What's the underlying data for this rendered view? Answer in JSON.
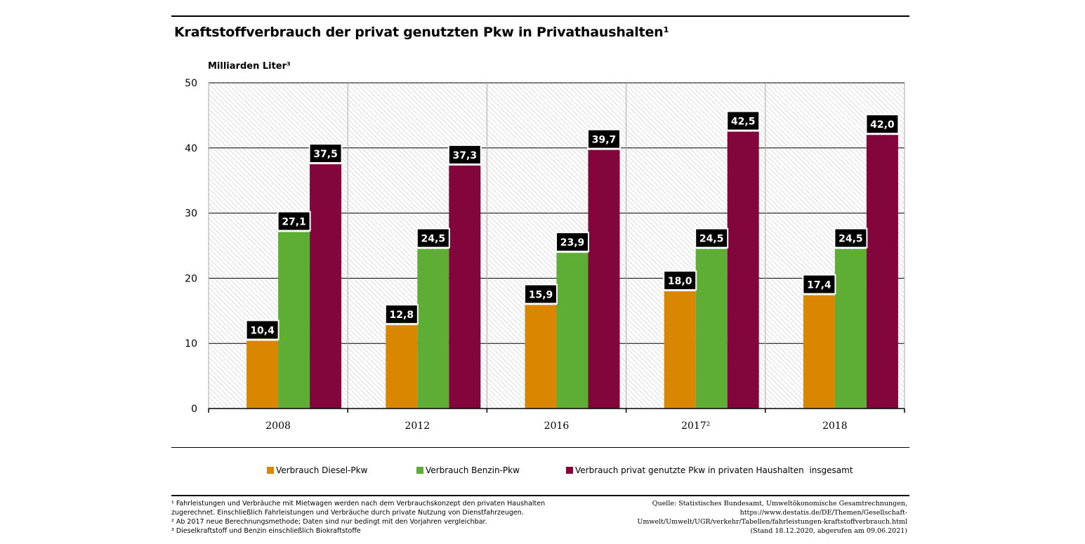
{
  "chart_data": {
    "type": "bar",
    "title": "Kraftstoffverbrauch der privat genutzten Pkw in Privathaushalten¹",
    "ylabel": "Milliarden Liter³",
    "xlabel": "",
    "ylim": [
      0,
      50
    ],
    "yticks": [
      "0",
      "10",
      "20",
      "30",
      "40",
      "50"
    ],
    "categories": [
      "2008",
      "2012",
      "2016",
      "2017²",
      "2018"
    ],
    "series": [
      {
        "name": "Verbrauch Diesel-Pkw",
        "color": "#d98600",
        "values": [
          10.4,
          12.8,
          15.9,
          18.0,
          17.4
        ],
        "labels": [
          "10,4",
          "12,8",
          "15,9",
          "18,0",
          "17,4"
        ]
      },
      {
        "name": "Verbrauch Benzin-Pkw",
        "color": "#5eae35",
        "values": [
          27.1,
          24.5,
          23.9,
          24.5,
          24.5
        ],
        "labels": [
          "27,1",
          "24,5",
          "23,9",
          "24,5",
          "24,5"
        ]
      },
      {
        "name": "Verbrauch privat genutzte Pkw in privaten Haushalten  insgesamt",
        "color": "#82063c",
        "values": [
          37.5,
          37.3,
          39.7,
          42.5,
          42.0
        ],
        "labels": [
          "37,5",
          "37,3",
          "39,7",
          "42,5",
          "42,0"
        ]
      }
    ],
    "grid": true,
    "legend": "bottom"
  },
  "footnotes": {
    "lines": [
      "¹ Fahrleistungen und Verbräuche mit Mietwagen werden nach dem Verbrauchskonzept den privaten Haushalten",
      "zugerechnet. Einschließlich Fahrleistungen und Verbräuche durch private Nutzung von Dienstfahrzeugen.",
      "² Ab 2017 neue Berechnungsmethode; Daten sind nur bedingt mit den Vorjahren vergleichbar.",
      "³ Dieselkraftstoff und Benzin einschließlich Biokraftstoffe"
    ]
  },
  "source": {
    "lines": [
      "Quelle: Statistisches Bundesamt, Umweltökonomische Gesamtrechnungen,",
      "https://www.destatis.de/DE/Themen/Gesellschaft-",
      "Umwelt/Umwelt/UGR/verkehr/Tabellen/fahrleistungen-kraftstoffverbrauch.html",
      "(Stand 18.12.2020, abgerufen am 09.06.2021)"
    ]
  }
}
